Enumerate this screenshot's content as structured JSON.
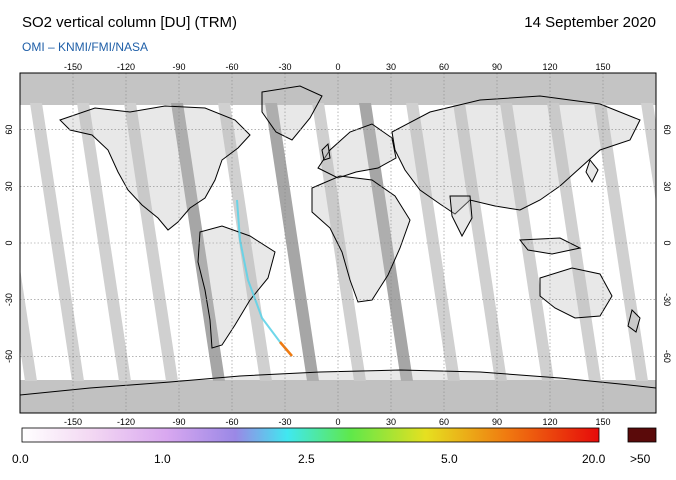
{
  "header": {
    "title": "SO2 vertical column [DU] (TRM)",
    "date": "14 September 2020",
    "credit": "OMI  –  KNMI/FMI/NASA"
  },
  "map": {
    "lon_ticks": [
      "-150",
      "-120",
      "-90",
      "-60",
      "-30",
      "0",
      "30",
      "60",
      "90",
      "120",
      "150"
    ],
    "lat_ticks": [
      "60",
      "30",
      "0",
      "-30",
      "-60"
    ],
    "colors": {
      "background": "#ffffff",
      "land_outline": "#000000",
      "swath_gap_light": "#d0d0d0",
      "swath_gap_dark": "#a6a6a6",
      "polar_cap": "#c4c4c4",
      "grid": "#888888"
    }
  },
  "colorbar": {
    "labels": [
      "0.0",
      "1.0",
      "2.5",
      "5.0",
      "20.0"
    ],
    "over_label": ">50",
    "over_color": "#5a0a0a",
    "stops": [
      "#ffffff",
      "#f3d8f3",
      "#d9a8f0",
      "#9a88e6",
      "#40e8f0",
      "#5fe84a",
      "#e6e020",
      "#f07a10",
      "#e60a0a"
    ]
  }
}
